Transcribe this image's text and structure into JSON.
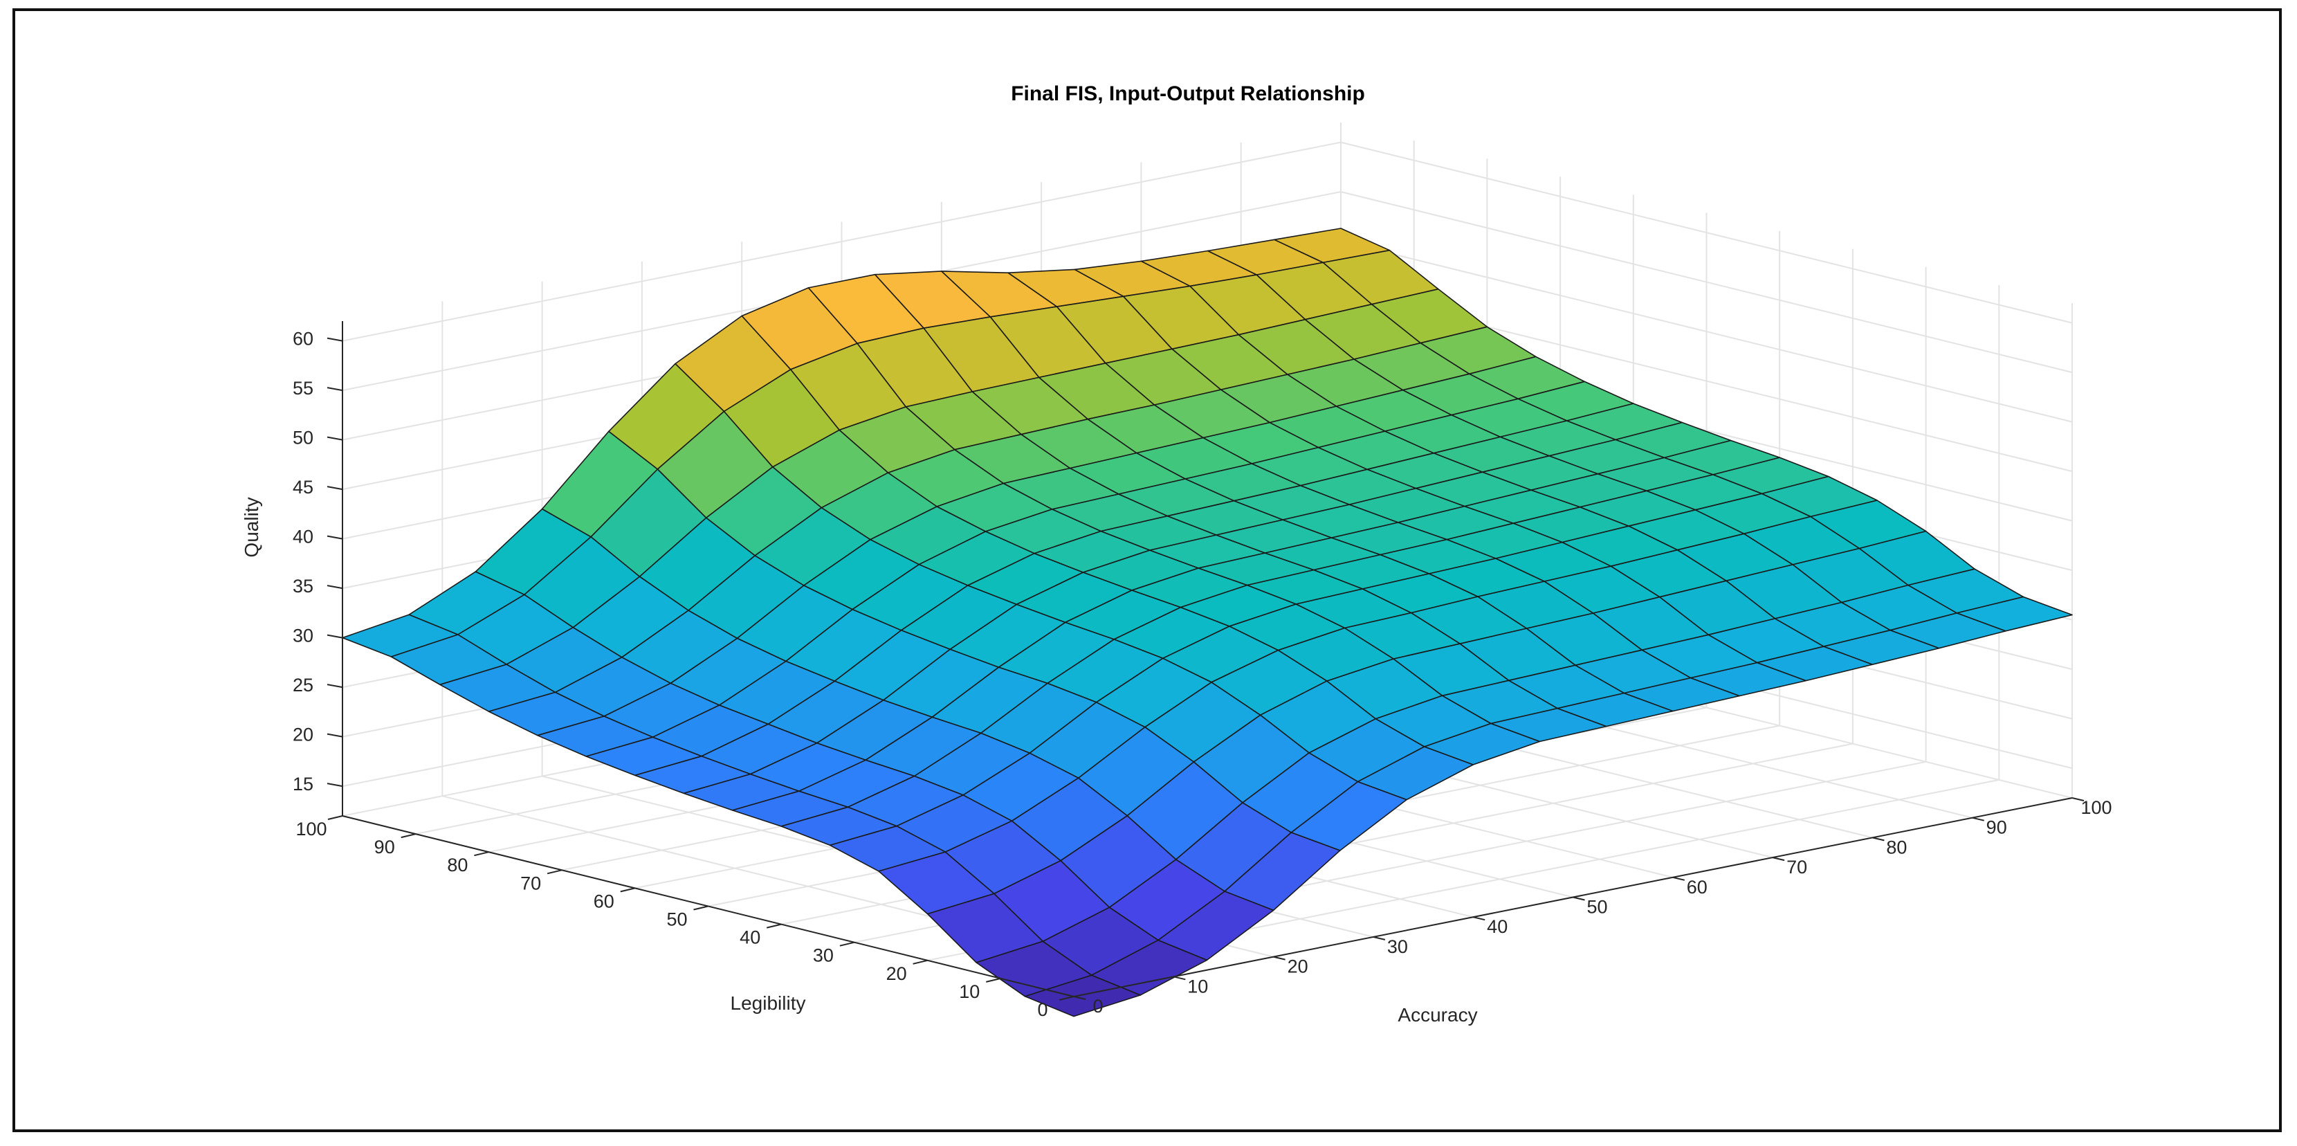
{
  "chart_data": {
    "type": "surface",
    "title": "Final FIS, Input-Output Relationship",
    "xlabel": "Accuracy",
    "ylabel": "Legibility",
    "zlabel": "Quality",
    "x_ticks": [
      0,
      10,
      20,
      30,
      40,
      50,
      60,
      70,
      80,
      90,
      100
    ],
    "y_ticks": [
      0,
      10,
      20,
      30,
      40,
      50,
      60,
      70,
      80,
      90,
      100
    ],
    "z_ticks": [
      15,
      20,
      25,
      30,
      35,
      40,
      45,
      50,
      55,
      60
    ],
    "xlim": [
      0,
      100
    ],
    "ylim": [
      0,
      100
    ],
    "zlim": [
      12,
      62
    ],
    "grid": true,
    "colormap": "parula",
    "x": [
      0,
      6.67,
      13.33,
      20,
      26.67,
      33.33,
      40,
      46.67,
      53.33,
      60,
      66.67,
      73.33,
      80,
      86.67,
      93.33,
      100
    ],
    "y": [
      0,
      6.67,
      13.33,
      20,
      26.67,
      33.33,
      40,
      46.67,
      53.33,
      60,
      66.67,
      73.33,
      80,
      86.67,
      93.33,
      100
    ],
    "z": [
      [
        10.0,
        10.8,
        13.0,
        16.7,
        21.4,
        25.2,
        27.4,
        28.4,
        28.6,
        28.8,
        29.0,
        29.2,
        29.5,
        29.8,
        30.2,
        30.5
      ],
      [
        10.8,
        11.6,
        13.8,
        17.4,
        22.0,
        25.8,
        28.0,
        29.0,
        29.2,
        29.4,
        29.6,
        29.8,
        30.1,
        30.4,
        30.8,
        31.1
      ],
      [
        13.0,
        13.8,
        15.9,
        19.4,
        23.8,
        27.5,
        29.6,
        30.6,
        30.8,
        31.0,
        31.2,
        31.4,
        31.7,
        32.0,
        32.4,
        32.7
      ],
      [
        16.7,
        17.4,
        19.4,
        22.6,
        26.7,
        30.1,
        32.2,
        33.1,
        33.3,
        33.5,
        33.7,
        34.0,
        34.3,
        34.6,
        34.9,
        35.3
      ],
      [
        19.8,
        20.4,
        22.2,
        25.2,
        29.0,
        32.2,
        34.1,
        35.0,
        35.2,
        35.5,
        35.7,
        35.9,
        36.2,
        36.5,
        36.9,
        37.2
      ],
      [
        21.2,
        21.8,
        23.6,
        26.5,
        30.3,
        33.4,
        35.3,
        36.2,
        36.4,
        36.6,
        36.8,
        37.1,
        37.4,
        37.7,
        38.0,
        38.4
      ],
      [
        21.9,
        22.5,
        24.3,
        27.3,
        31.0,
        34.1,
        36.0,
        36.9,
        37.1,
        37.3,
        37.5,
        37.8,
        38.1,
        38.4,
        38.7,
        39.1
      ],
      [
        22.3,
        22.9,
        24.7,
        27.7,
        31.4,
        34.6,
        36.5,
        37.4,
        37.6,
        37.8,
        38.0,
        38.3,
        38.6,
        38.9,
        39.2,
        39.6
      ],
      [
        22.8,
        23.4,
        25.2,
        28.2,
        32.0,
        35.2,
        37.1,
        38.0,
        38.2,
        38.4,
        38.6,
        38.9,
        39.2,
        39.5,
        39.8,
        40.2
      ],
      [
        23.4,
        24.0,
        25.9,
        28.9,
        32.7,
        35.9,
        37.8,
        38.7,
        38.9,
        39.1,
        39.3,
        39.6,
        39.9,
        40.2,
        40.5,
        40.9
      ],
      [
        24.1,
        24.7,
        26.6,
        29.7,
        33.6,
        36.8,
        38.8,
        39.7,
        39.9,
        40.1,
        40.3,
        40.6,
        40.9,
        41.2,
        41.5,
        41.9
      ],
      [
        25.0,
        25.6,
        27.6,
        30.8,
        34.8,
        38.1,
        40.1,
        41.1,
        41.3,
        41.5,
        41.7,
        41.9,
        42.2,
        42.5,
        42.8,
        43.2
      ],
      [
        26.2,
        26.8,
        29.0,
        32.4,
        36.6,
        40.1,
        42.3,
        43.3,
        43.5,
        43.7,
        43.8,
        44.0,
        44.2,
        44.4,
        44.7,
        45.0
      ],
      [
        27.7,
        28.4,
        30.8,
        34.6,
        39.2,
        43.0,
        45.4,
        46.4,
        46.6,
        46.7,
        46.8,
        46.9,
        47.0,
        47.2,
        47.4,
        47.6
      ],
      [
        29.3,
        30.2,
        32.9,
        37.4,
        42.9,
        47.4,
        50.3,
        51.6,
        51.8,
        51.6,
        51.3,
        51.0,
        50.7,
        50.5,
        50.4,
        50.3
      ],
      [
        30.0,
        31.0,
        34.0,
        39.0,
        45.5,
        51.0,
        54.5,
        56.0,
        56.0,
        55.0,
        53.5,
        52.5,
        52.0,
        51.7,
        51.5,
        51.3
      ]
    ]
  }
}
